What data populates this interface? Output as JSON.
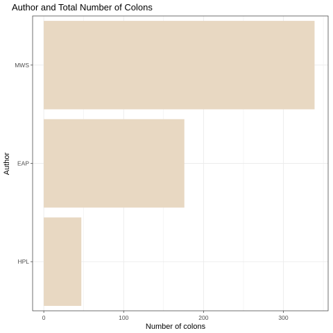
{
  "chart_data": {
    "type": "bar",
    "orientation": "horizontal",
    "title": "Author and Total Number of Colons",
    "xlabel": "Number of colons",
    "ylabel": "Author",
    "categories": [
      "MWS",
      "EAP",
      "HPL"
    ],
    "values": [
      339,
      176,
      47
    ],
    "xlim": [
      -14,
      356
    ],
    "xticks": [
      0,
      100,
      200,
      300
    ],
    "bar_color": "#e8d8c2",
    "grid": true,
    "legend": "none"
  }
}
